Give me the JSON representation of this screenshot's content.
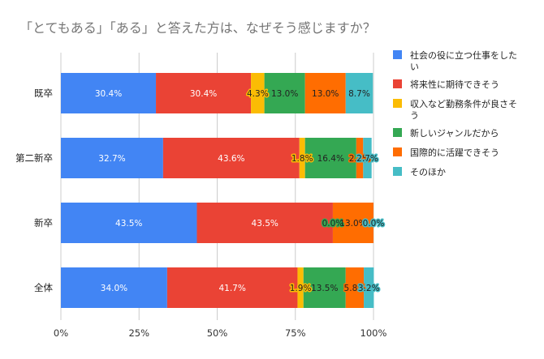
{
  "chart_data": {
    "type": "bar",
    "orientation": "horizontal",
    "stacked": "percent",
    "title": "「とてもある」「ある」と答えた方は、なぜそう感じますか？",
    "categories": [
      "既卒",
      "第二新卒",
      "新卒",
      "全体"
    ],
    "series": [
      {
        "name": "社会の役に立つ仕事をしたい",
        "color": "#4285f4",
        "values": [
          30.4,
          32.7,
          43.5,
          34.0
        ],
        "labels": [
          "30.4%",
          "32.7%",
          "43.5%",
          "34.0%"
        ]
      },
      {
        "name": "将来性に期待できそう",
        "color": "#ea4335",
        "values": [
          30.4,
          43.6,
          43.5,
          41.7
        ],
        "labels": [
          "30.4%",
          "43.6%",
          "43.5%",
          "41.7%"
        ]
      },
      {
        "name": "収入など勤務条件が良さそう",
        "color": "#fbbc04",
        "values": [
          4.3,
          1.8,
          0.0,
          1.9
        ],
        "labels": [
          "4.3%",
          "1.8%",
          "",
          "1.9%"
        ]
      },
      {
        "name": "新しいジャンルだから",
        "color": "#34a853",
        "values": [
          13.0,
          16.4,
          0.0,
          13.5
        ],
        "labels": [
          "13.0%",
          "16.4%",
          "0.0%",
          "13.5%"
        ]
      },
      {
        "name": "国際的に活躍できそう",
        "color": "#ff6d01",
        "values": [
          13.0,
          2.2,
          13.0,
          5.8
        ],
        "labels": [
          "13.0%",
          "2.2%",
          "13.0%",
          "5.8%"
        ]
      },
      {
        "name": "そのほか",
        "color": "#46bdc6",
        "values": [
          8.7,
          2.7,
          0.0,
          3.2
        ],
        "labels": [
          "8.7%",
          "2.7%",
          "0.0%",
          "3.2%"
        ]
      }
    ],
    "x_ticks": [
      "0%",
      "25%",
      "50%",
      "75%",
      "100%"
    ],
    "xlim": [
      0,
      100
    ],
    "grid": true,
    "legend_position": "right"
  }
}
